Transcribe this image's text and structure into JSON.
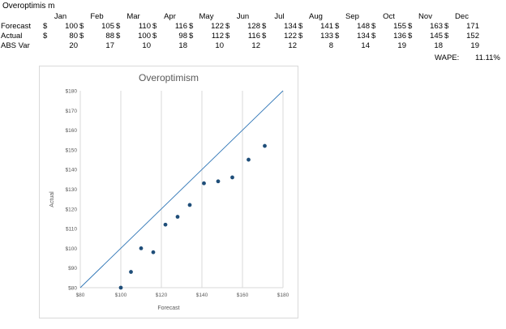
{
  "sheet": {
    "title": "Overoptimis m",
    "months": [
      "Jan",
      "Feb",
      "Mar",
      "Apr",
      "May",
      "Jun",
      "Jul",
      "Aug",
      "Sep",
      "Oct",
      "Nov",
      "Dec"
    ],
    "currency_symbol": "$",
    "rows": [
      {
        "label": "Forecast",
        "currency": true,
        "values": [
          100,
          105,
          110,
          116,
          122,
          128,
          134,
          141,
          148,
          155,
          163,
          171
        ]
      },
      {
        "label": "Actual",
        "currency": true,
        "values": [
          80,
          88,
          100,
          98,
          112,
          116,
          122,
          133,
          134,
          136,
          145,
          152
        ]
      },
      {
        "label": "ABS Var",
        "currency": false,
        "values": [
          20,
          17,
          10,
          18,
          10,
          12,
          12,
          8,
          14,
          19,
          18,
          19
        ]
      }
    ],
    "wape_label": "WAPE:",
    "wape_value": "11.11%"
  },
  "colors": {
    "points": "#1f4e79",
    "reference_line": "#2e75b6",
    "gridline": "#d9d9d9",
    "axis_text": "#595959"
  },
  "chart_data": {
    "type": "scatter",
    "title": "Overoptimism",
    "xlabel": "Forecast",
    "ylabel": "Actual",
    "xlim": [
      80,
      180
    ],
    "ylim": [
      80,
      180
    ],
    "x_ticks": [
      80,
      100,
      120,
      140,
      160,
      180
    ],
    "x_tick_labels": [
      "$80",
      "$100",
      "$120",
      "$140",
      "$160",
      "$180"
    ],
    "y_ticks": [
      80,
      90,
      100,
      110,
      120,
      130,
      140,
      150,
      160,
      170,
      180
    ],
    "y_tick_labels": [
      "$80",
      "$90",
      "$100",
      "$110",
      "$120",
      "$130",
      "$140",
      "$150",
      "$160",
      "$170",
      "$180"
    ],
    "grid": {
      "vertical": true,
      "horizontal": false
    },
    "reference_line": {
      "from": [
        80,
        80
      ],
      "to": [
        180,
        180
      ]
    },
    "series": [
      {
        "x": [
          100,
          105,
          110,
          116,
          122,
          128,
          134,
          141,
          148,
          155,
          163,
          171
        ],
        "y": [
          80,
          88,
          100,
          98,
          112,
          116,
          122,
          133,
          134,
          136,
          145,
          152
        ]
      }
    ]
  }
}
